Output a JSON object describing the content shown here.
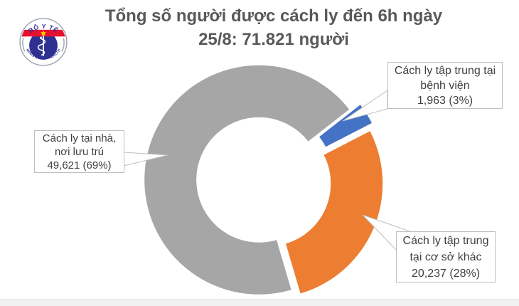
{
  "header": {
    "title_line1": "Tổng số người được cách ly đến 6h ngày",
    "title_line2": "25/8: 71.821 người"
  },
  "logo": {
    "top_text": "BỘ Y TẾ",
    "bottom_text": "MINISTRY OF HEALTH",
    "colors": {
      "navy": "#2E3192",
      "red": "#E8112D",
      "star_yellow": "#FFD100",
      "ring_silver": "#9AA4B0"
    }
  },
  "chart_data": {
    "type": "pie",
    "subtype": "exploded-donut",
    "title": "Tổng số người được cách ly đến 6h ngày 25/8: 71.821 người",
    "total_display": "71.821 người",
    "start_angle": 52,
    "legend_position": "callout-labels",
    "slices": [
      {
        "name": "Cách ly tập trung tại bệnh viện",
        "value": 1963,
        "value_display": "1,963",
        "percent": 3,
        "color": "#4472C4",
        "callout": [
          "Cách ly tập trung tại",
          "bệnh viện",
          "1,963 (3%)"
        ]
      },
      {
        "name": "Cách ly tập trung tại cơ sở khác",
        "value": 20237,
        "value_display": "20,237",
        "percent": 28,
        "color": "#ED7D31",
        "callout": [
          "Cách ly tập trung",
          "tại cơ sở khác",
          "20,237 (28%)"
        ]
      },
      {
        "name": "Cách ly tại nhà, nơi lưu trú",
        "value": 49621,
        "value_display": "49,621",
        "percent": 69,
        "color": "#A6A6A6",
        "callout": [
          "Cách ly tại nhà,",
          "nơi lưu trú",
          "49,621 (69%)"
        ]
      }
    ]
  }
}
